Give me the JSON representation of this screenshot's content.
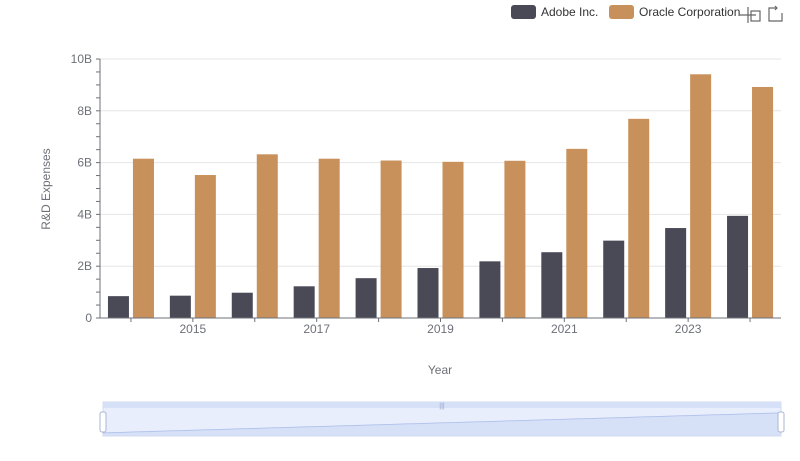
{
  "toolbar": {
    "icons": [
      "zoom-icon",
      "zoom-reset-icon"
    ]
  },
  "chart_data": {
    "type": "bar",
    "xlabel": "Year",
    "ylabel": "R&D Expenses",
    "categories": [
      "2014",
      "2015",
      "2016",
      "2017",
      "2018",
      "2019",
      "2020",
      "2021",
      "2022",
      "2023",
      "2024"
    ],
    "x_tick_labels": [
      "2015",
      "2017",
      "2019",
      "2021",
      "2023"
    ],
    "y_ticks": [
      0,
      2000000000,
      4000000000,
      6000000000,
      8000000000,
      10000000000
    ],
    "y_tick_labels": [
      "0",
      "2B",
      "4B",
      "6B",
      "8B",
      "10B"
    ],
    "ylim": [
      0,
      10000000000
    ],
    "grid": true,
    "legend_position": "top-right",
    "series": [
      {
        "name": "Adobe Inc.",
        "color": "#4a4a56",
        "values": [
          844000000,
          862000000,
          976000000,
          1224000000,
          1538000000,
          1930000000,
          2188000000,
          2540000000,
          2987000000,
          3473000000,
          3944000000
        ]
      },
      {
        "name": "Oracle Corporation",
        "color": "#c8905a",
        "values": [
          6150000000,
          5520000000,
          6320000000,
          6150000000,
          6080000000,
          6030000000,
          6070000000,
          6530000000,
          7690000000,
          9410000000,
          8920000000
        ]
      }
    ]
  }
}
